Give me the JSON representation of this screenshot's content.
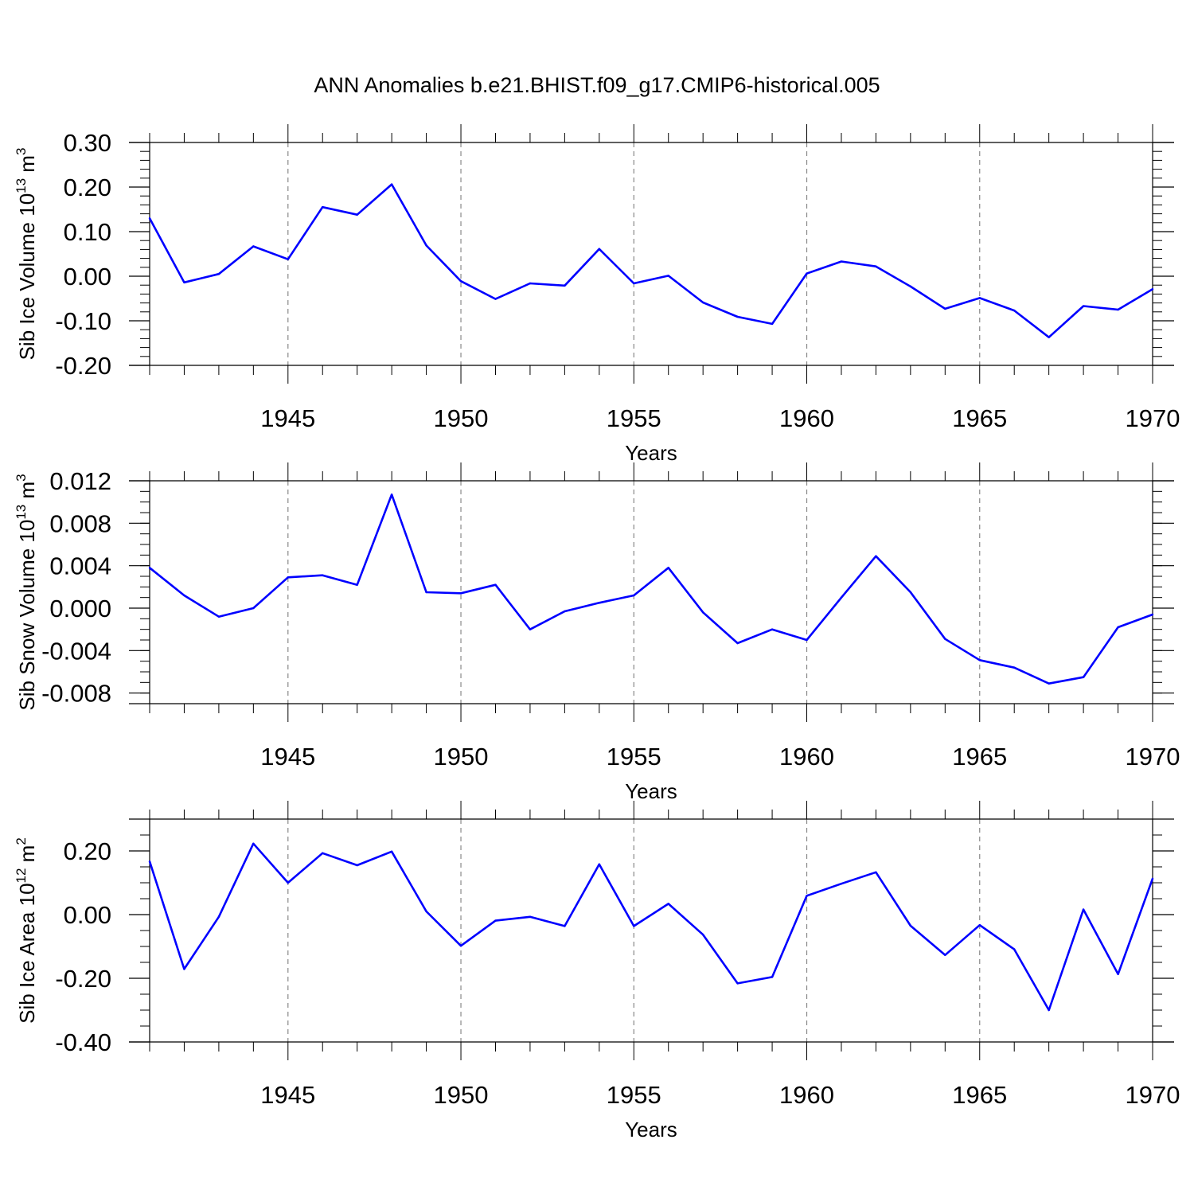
{
  "title": "ANN Anomalies b.e21.BHIST.f09_g17.CMIP6-historical.005",
  "colors": {
    "line": "#0000ff",
    "frame": "#000000",
    "grid": "#888888",
    "background": "#ffffff"
  },
  "chart_data": [
    {
      "type": "line",
      "xlabel": "Years",
      "ylabel": {
        "text": "Sib Ice Volume 10",
        "exp": "13",
        "unit": " m",
        "unit_exp": "3"
      },
      "xlim": [
        1941,
        1970
      ],
      "ylim": [
        -0.2,
        0.3
      ],
      "x_ticks": [
        1945,
        1950,
        1955,
        1960,
        1965,
        1970
      ],
      "y_ticks": [
        -0.2,
        -0.1,
        0.0,
        0.1,
        0.2,
        0.3
      ],
      "y_tick_labels": [
        "-0.20",
        "-0.10",
        "0.00",
        "0.10",
        "0.20",
        "0.30"
      ],
      "y_minor_step": 0.02,
      "grid": "x-dashed",
      "x": [
        1941,
        1942,
        1943,
        1944,
        1945,
        1946,
        1947,
        1948,
        1949,
        1950,
        1951,
        1952,
        1953,
        1954,
        1955,
        1956,
        1957,
        1958,
        1959,
        1960,
        1961,
        1962,
        1963,
        1964,
        1965,
        1966,
        1967,
        1968,
        1969,
        1970
      ],
      "values": [
        0.13,
        -0.014,
        0.005,
        0.067,
        0.038,
        0.155,
        0.138,
        0.206,
        0.069,
        -0.011,
        -0.051,
        -0.016,
        -0.021,
        0.061,
        -0.016,
        0.001,
        -0.059,
        -0.091,
        -0.107,
        0.006,
        0.033,
        0.022,
        -0.023,
        -0.073,
        -0.049,
        -0.077,
        -0.137,
        -0.067,
        -0.075,
        -0.029
      ]
    },
    {
      "type": "line",
      "xlabel": "Years",
      "ylabel": {
        "text": "Sib Snow Volume 10",
        "exp": "13",
        "unit": " m",
        "unit_exp": "3"
      },
      "xlim": [
        1941,
        1970
      ],
      "ylim": [
        -0.009,
        0.012
      ],
      "x_ticks": [
        1945,
        1950,
        1955,
        1960,
        1965,
        1970
      ],
      "y_ticks": [
        -0.008,
        -0.004,
        0.0,
        0.004,
        0.008,
        0.012
      ],
      "y_tick_labels": [
        "-0.008",
        "-0.004",
        "0.000",
        "0.004",
        "0.008",
        "0.012"
      ],
      "y_minor_step": 0.001,
      "grid": "x-dashed",
      "x": [
        1941,
        1942,
        1943,
        1944,
        1945,
        1946,
        1947,
        1948,
        1949,
        1950,
        1951,
        1952,
        1953,
        1954,
        1955,
        1956,
        1957,
        1958,
        1959,
        1960,
        1961,
        1962,
        1963,
        1964,
        1965,
        1966,
        1967,
        1968,
        1969,
        1970
      ],
      "values": [
        0.0038,
        0.0012,
        -0.0008,
        0.0,
        0.0029,
        0.0031,
        0.0022,
        0.0107,
        0.0015,
        0.0014,
        0.0022,
        -0.002,
        -0.0003,
        0.0005,
        0.0012,
        0.0038,
        -0.0004,
        -0.0033,
        -0.002,
        -0.003,
        0.001,
        0.0049,
        0.0015,
        -0.0029,
        -0.0049,
        -0.0056,
        -0.0071,
        -0.0065,
        -0.0018,
        -0.0006
      ]
    },
    {
      "type": "line",
      "xlabel": "Years",
      "ylabel": {
        "text": "Sib Ice Area 10",
        "exp": "12",
        "unit": " m",
        "unit_exp": "2"
      },
      "xlim": [
        1941,
        1970
      ],
      "ylim": [
        -0.4,
        0.3
      ],
      "x_ticks": [
        1945,
        1950,
        1955,
        1960,
        1965,
        1970
      ],
      "y_ticks": [
        -0.4,
        -0.2,
        0.0,
        0.2
      ],
      "y_tick_labels": [
        "-0.40",
        "-0.20",
        "0.00",
        "0.20"
      ],
      "y_minor_step": 0.05,
      "grid": "x-dashed",
      "x": [
        1941,
        1942,
        1943,
        1944,
        1945,
        1946,
        1947,
        1948,
        1949,
        1950,
        1951,
        1952,
        1953,
        1954,
        1955,
        1956,
        1957,
        1958,
        1959,
        1960,
        1961,
        1962,
        1963,
        1964,
        1965,
        1966,
        1967,
        1968,
        1969,
        1970
      ],
      "values": [
        0.167,
        -0.171,
        -0.007,
        0.223,
        0.1,
        0.193,
        0.155,
        0.198,
        0.01,
        -0.098,
        -0.019,
        -0.007,
        -0.036,
        0.158,
        -0.036,
        0.034,
        -0.063,
        -0.216,
        -0.196,
        0.059,
        0.097,
        0.133,
        -0.035,
        -0.127,
        -0.033,
        -0.109,
        -0.3,
        0.016,
        -0.187,
        0.113
      ]
    }
  ]
}
